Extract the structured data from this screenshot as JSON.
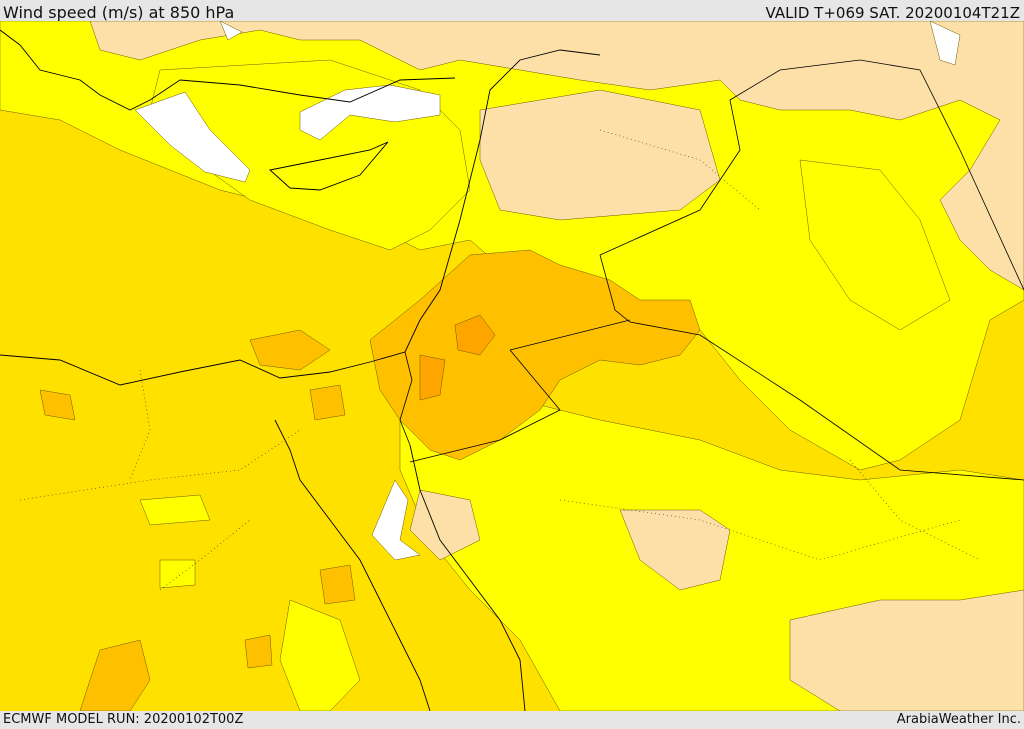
{
  "header": {
    "title": "Wind speed (m/s) at 850 hPa",
    "valid": "VALID T+069 SAT. 20200104T21Z"
  },
  "footer": {
    "model_run": "ECMWF MODEL RUN: 20200102T00Z",
    "credit": "ArabiaWeather Inc."
  },
  "map": {
    "variable": "wind speed",
    "units": "m/s",
    "level": "850 hPa",
    "colors": {
      "lowest": "#ffffff",
      "low": "#fde0a8",
      "moderate": "#ffff00",
      "elevated": "#ffe100",
      "high": "#ffc000",
      "highest": "#ffa500"
    }
  }
}
